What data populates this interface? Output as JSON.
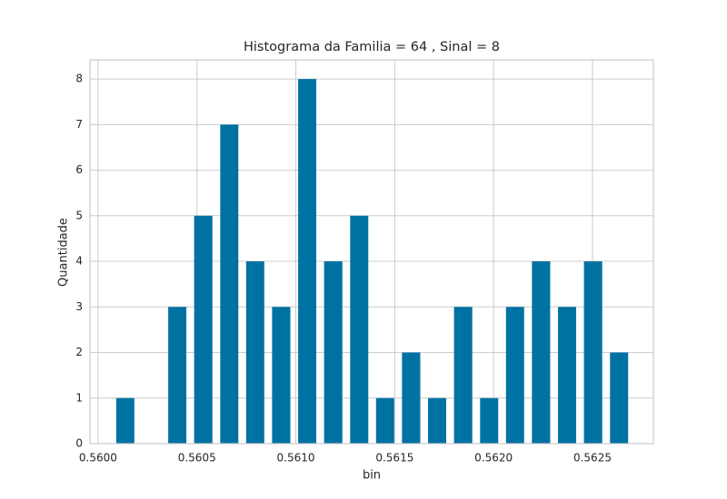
{
  "chart_data": {
    "type": "histogram",
    "title": "Histograma da Familia = 64 , Sinal = 8",
    "x_label": "bin",
    "y_label": "Quantidade",
    "bins": [
      0.560072,
      0.560203,
      0.560335,
      0.560466,
      0.560598,
      0.560729,
      0.56086,
      0.560992,
      0.561123,
      0.561255,
      0.561386,
      0.561517,
      0.561649,
      0.56178,
      0.561912,
      0.562043,
      0.562174,
      0.562306,
      0.562437,
      0.562569,
      0.5627
    ],
    "values": [
      1,
      0,
      3,
      5,
      7,
      4,
      3,
      8,
      4,
      5,
      1,
      2,
      1,
      3,
      1,
      3,
      4,
      3,
      4,
      2
    ],
    "color": "#0072a2",
    "xlim": [
      0.559959,
      0.562808
    ],
    "xticks": [
      {
        "value": 0.56,
        "label": "0.5600"
      },
      {
        "value": 0.5605,
        "label": "0.5605"
      },
      {
        "value": 0.561,
        "label": "0.5610"
      },
      {
        "value": 0.5615,
        "label": "0.5615"
      },
      {
        "value": 0.562,
        "label": "0.5620"
      },
      {
        "value": 0.5625,
        "label": "0.5625"
      }
    ],
    "ylim": [
      0,
      8.42
    ],
    "yticks": [
      0,
      1,
      2,
      3,
      4,
      5,
      6,
      7,
      8
    ],
    "grid": true
  }
}
